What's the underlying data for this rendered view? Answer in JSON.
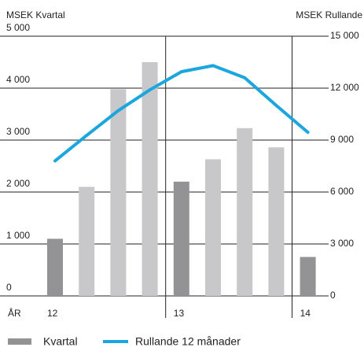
{
  "chart_data": {
    "type": "bar",
    "y_label": "MSEK Kvartal",
    "y2_label": "MSEK Rullande",
    "x_label": "ÅR",
    "categories": [
      "12",
      null,
      null,
      null,
      "13",
      null,
      null,
      null,
      "14"
    ],
    "series": [
      {
        "name": "Kvartal",
        "type": "bar",
        "color": "#939396",
        "bar_colors": [
          "#939396",
          "#c8c8ca",
          "#c8c8ca",
          "#c8c8ca",
          "#939396",
          "#c8c8ca",
          "#c8c8ca",
          "#c8c8ca",
          "#939396"
        ],
        "values": [
          1100,
          2100,
          3980,
          4500,
          2200,
          2630,
          3230,
          2860,
          750
        ]
      },
      {
        "name": "Rullande 12 månader",
        "type": "line",
        "axis": "y2",
        "color": "#1ba6de",
        "values": [
          7800,
          9270,
          10700,
          11900,
          12950,
          13300,
          12600,
          11000,
          9450
        ]
      }
    ],
    "ylim": [
      0,
      5000
    ],
    "yticks": [
      0,
      {
        "value": 1000,
        "label": "1 000"
      },
      {
        "value": 2000,
        "label": "2 000"
      },
      {
        "value": 3000,
        "label": "3 000"
      },
      {
        "value": 4000,
        "label": "4 000"
      },
      {
        "value": 5000,
        "label": "5 000"
      }
    ],
    "y2lim": [
      0,
      15000
    ],
    "y2ticks": [
      0,
      {
        "value": 3000,
        "label": "3 000"
      },
      {
        "value": 6000,
        "label": "6 000"
      },
      {
        "value": 9000,
        "label": "9 000"
      },
      {
        "value": 12000,
        "label": "12 000"
      },
      {
        "value": 15000,
        "label": "15 000"
      }
    ],
    "grid": true
  }
}
